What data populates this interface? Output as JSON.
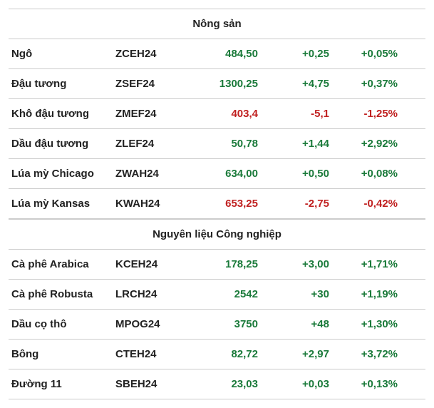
{
  "colors": {
    "positive": "#1a7a3a",
    "negative": "#c02020",
    "text": "#222222",
    "border": "#cccccc",
    "background": "#ffffff"
  },
  "fontsize": {
    "header": 15,
    "cell": 15
  },
  "sections": [
    {
      "title": "Nông sản",
      "rows": [
        {
          "name": "Ngô",
          "code": "ZCEH24",
          "price": "484,50",
          "change": "+0,25",
          "pct": "+0,05%",
          "dir": "pos"
        },
        {
          "name": "Đậu tương",
          "code": "ZSEF24",
          "price": "1300,25",
          "change": "+4,75",
          "pct": "+0,37%",
          "dir": "pos"
        },
        {
          "name": "Khô đậu tương",
          "code": "ZMEF24",
          "price": "403,4",
          "change": "-5,1",
          "pct": "-1,25%",
          "dir": "neg"
        },
        {
          "name": "Dầu đậu tương",
          "code": "ZLEF24",
          "price": "50,78",
          "change": "+1,44",
          "pct": "+2,92%",
          "dir": "pos"
        },
        {
          "name": "Lúa mỳ Chicago",
          "code": "ZWAH24",
          "price": "634,00",
          "change": "+0,50",
          "pct": "+0,08%",
          "dir": "pos"
        },
        {
          "name": "Lúa mỳ Kansas",
          "code": "KWAH24",
          "price": "653,25",
          "change": "-2,75",
          "pct": "-0,42%",
          "dir": "neg"
        }
      ]
    },
    {
      "title": "Nguyên liệu Công nghiệp",
      "rows": [
        {
          "name": "Cà phê Arabica",
          "code": "KCEH24",
          "price": "178,25",
          "change": "+3,00",
          "pct": "+1,71%",
          "dir": "pos"
        },
        {
          "name": "Cà phê Robusta",
          "code": "LRCH24",
          "price": "2542",
          "change": "+30",
          "pct": "+1,19%",
          "dir": "pos"
        },
        {
          "name": "Dầu cọ thô",
          "code": "MPOG24",
          "price": "3750",
          "change": "+48",
          "pct": "+1,30%",
          "dir": "pos"
        },
        {
          "name": "Bông",
          "code": "CTEH24",
          "price": "82,72",
          "change": "+2,97",
          "pct": "+3,72%",
          "dir": "pos"
        },
        {
          "name": "Đường 11",
          "code": "SBEH24",
          "price": "23,03",
          "change": "+0,03",
          "pct": "+0,13%",
          "dir": "pos"
        }
      ]
    }
  ]
}
